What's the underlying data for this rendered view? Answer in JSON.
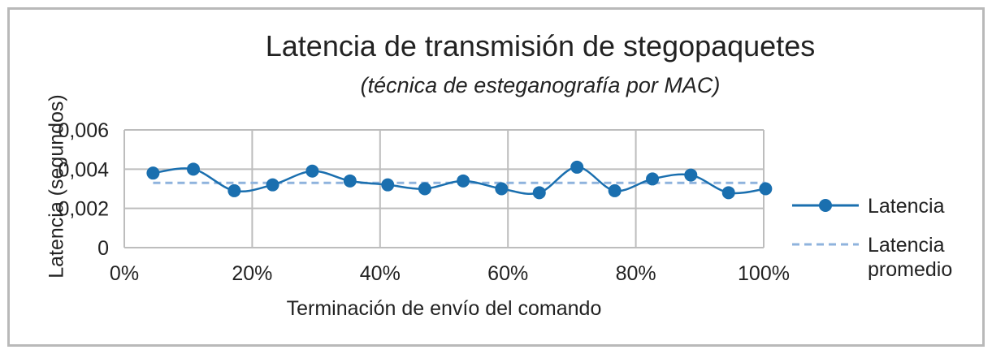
{
  "chart_data": {
    "type": "line",
    "title": "Latencia de transmisión de stegopaquetes",
    "subtitle": "(técnica de esteganografía por MAC)",
    "xlabel": "Terminación de envío del comando",
    "ylabel": "Latencia (segundos)",
    "xlim": [
      0,
      100
    ],
    "ylim": [
      0,
      0.006
    ],
    "x_ticks": [
      "0%",
      "20%",
      "40%",
      "60%",
      "80%",
      "100%"
    ],
    "y_ticks": [
      "0",
      "0,002",
      "0,004",
      "0,006"
    ],
    "grid": true,
    "legend_position": "right",
    "series": [
      {
        "name": "Latencia",
        "style": "solid-with-markers",
        "color": "#1a6faf",
        "x": [
          4.5,
          10.8,
          17.2,
          23.2,
          29.4,
          35.3,
          41.2,
          47.0,
          53.0,
          59.0,
          64.9,
          70.8,
          76.7,
          82.6,
          88.6,
          94.5,
          100.3
        ],
        "y": [
          0.0038,
          0.004,
          0.0029,
          0.0032,
          0.0039,
          0.0034,
          0.0032,
          0.003,
          0.0034,
          0.003,
          0.0028,
          0.0041,
          0.0029,
          0.0035,
          0.0037,
          0.0028,
          0.003
        ]
      },
      {
        "name": "Latencia promedio",
        "style": "dashed",
        "color": "#8fb3dd",
        "x": [
          4.5,
          100.3
        ],
        "y": [
          0.0033,
          0.0033
        ]
      }
    ]
  }
}
